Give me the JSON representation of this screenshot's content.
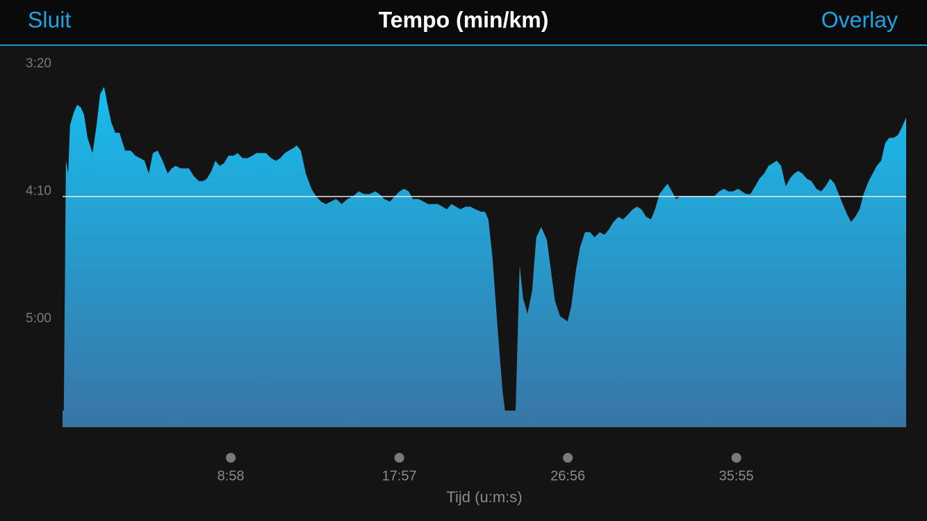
{
  "header": {
    "close": "Sluit",
    "title": "Tempo (min/km)",
    "overlay": "Overlay"
  },
  "chart_data": {
    "type": "area",
    "x_label": "Tijd (u:m:s)",
    "gradient": [
      "#18bdee",
      "#3875a6"
    ],
    "average_color": "#e8e8e8",
    "average": 252,
    "xlim": [
      0,
      2698
    ],
    "ylim": [
      342.5,
      193.2
    ],
    "xticks": [
      {
        "value": 538,
        "label": "8:58"
      },
      {
        "value": 1077,
        "label": "17:57"
      },
      {
        "value": 1616,
        "label": "26:56"
      },
      {
        "value": 2155,
        "label": "35:55"
      }
    ],
    "yticks": [
      {
        "value": 200,
        "label": "3:20"
      },
      {
        "value": 250,
        "label": "4:10"
      },
      {
        "value": 300,
        "label": "5:00"
      }
    ],
    "x": [
      4,
      11,
      18,
      24,
      36,
      47,
      58,
      69,
      80,
      96,
      109,
      120,
      133,
      144,
      156,
      169,
      182,
      200,
      218,
      233,
      249,
      262,
      276,
      289,
      304,
      320,
      336,
      349,
      362,
      378,
      391,
      404,
      420,
      436,
      449,
      462,
      476,
      489,
      502,
      516,
      531,
      547,
      560,
      576,
      591,
      607,
      620,
      636,
      651,
      667,
      682,
      696,
      711,
      724,
      738,
      749,
      762,
      778,
      796,
      811,
      827,
      842,
      858,
      875,
      893,
      911,
      929,
      947,
      964,
      982,
      1000,
      1013,
      1029,
      1047,
      1062,
      1078,
      1093,
      1107,
      1120,
      1138,
      1155,
      1169,
      1182,
      1200,
      1215,
      1229,
      1244,
      1258,
      1273,
      1289,
      1304,
      1320,
      1338,
      1351,
      1362,
      1375,
      1391,
      1407,
      1415,
      1449,
      1462,
      1473,
      1487,
      1502,
      1515,
      1531,
      1549,
      1562,
      1575,
      1591,
      1604,
      1615,
      1627,
      1642,
      1655,
      1671,
      1687,
      1702,
      1718,
      1733,
      1747,
      1762,
      1778,
      1793,
      1809,
      1824,
      1838,
      1851,
      1867,
      1882,
      1895,
      1909,
      1922,
      1935,
      1949,
      1962,
      1978,
      1993,
      2009,
      2022,
      2038,
      2053,
      2069,
      2084,
      2100,
      2115,
      2129,
      2144,
      2160,
      2173,
      2186,
      2200,
      2215,
      2229,
      2244,
      2258,
      2271,
      2284,
      2298,
      2313,
      2326,
      2340,
      2353,
      2366,
      2380,
      2395,
      2411,
      2426,
      2440,
      2455,
      2469,
      2482,
      2495,
      2509,
      2522,
      2535,
      2549,
      2562,
      2578,
      2591,
      2604,
      2618,
      2631,
      2644,
      2658,
      2671,
      2684,
      2698
    ],
    "values": [
      336,
      238,
      243,
      224,
      219,
      216,
      217,
      220,
      229,
      235,
      224,
      212,
      209,
      216,
      223,
      227,
      227,
      234,
      234,
      236,
      237,
      238,
      243,
      235,
      234,
      238,
      243,
      241,
      240,
      241,
      241,
      241,
      244,
      246,
      246,
      245,
      242,
      238,
      240,
      239,
      236,
      236,
      235,
      237,
      237,
      236,
      235,
      235,
      235,
      237,
      238,
      237,
      235,
      234,
      233,
      232,
      234,
      243,
      249,
      252,
      254,
      255,
      254,
      253,
      255,
      253,
      252,
      250,
      251,
      251,
      250,
      251,
      253,
      254,
      252,
      250,
      249,
      250,
      253,
      253,
      254,
      255,
      255,
      255,
      256,
      257,
      255,
      256,
      257,
      256,
      256,
      257,
      258,
      258,
      261,
      276,
      303,
      328,
      336,
      336,
      279,
      292,
      298,
      289,
      268,
      264,
      269,
      281,
      293,
      299,
      300,
      301,
      295,
      281,
      272,
      266,
      266,
      268,
      266,
      267,
      265,
      262,
      260,
      261,
      259,
      257,
      256,
      257,
      260,
      261,
      257,
      251,
      249,
      247,
      250,
      253,
      252,
      252,
      252,
      252,
      252,
      252,
      252,
      252,
      250,
      249,
      250,
      250,
      249,
      250,
      251,
      251,
      248,
      245,
      243,
      240,
      239,
      238,
      240,
      248,
      245,
      243,
      242,
      243,
      245,
      246,
      249,
      250,
      248,
      245,
      247,
      251,
      255,
      259,
      262,
      260,
      257,
      251,
      246,
      243,
      240,
      238,
      231,
      229,
      229,
      228,
      225,
      221
    ]
  }
}
